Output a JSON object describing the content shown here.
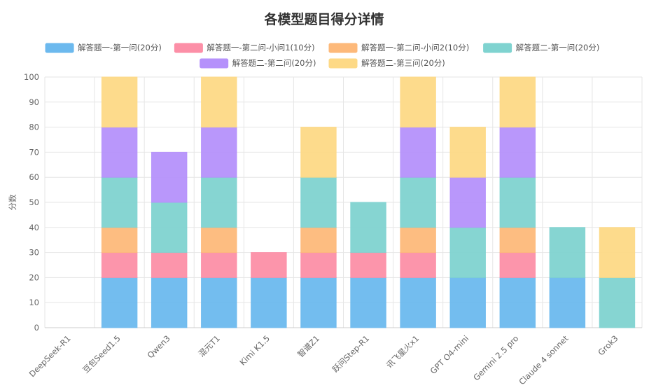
{
  "chart_data": {
    "type": "bar",
    "stacked": true,
    "title": "各模型题目得分详情",
    "ylabel": "分数",
    "xlabel": "",
    "ylim": [
      0,
      100
    ],
    "yticks": [
      0,
      10,
      20,
      30,
      40,
      50,
      60,
      70,
      80,
      90,
      100
    ],
    "grid": true,
    "legend_position": "top",
    "categories": [
      "DeepSeek-R1",
      "豆包Seed1.5",
      "Qwen3",
      "混元T1",
      "Kimi K1.5",
      "智谱Z1",
      "跃问Step-R1",
      "讯飞星火x1",
      "GPT O4-mini",
      "Gemini 2.5 pro",
      "Claude 4 sonnet",
      "Grok3"
    ],
    "series": [
      {
        "name": "解答题一-第一问(20分)",
        "color": "#6cb9ee",
        "values": [
          0,
          20,
          20,
          20,
          20,
          20,
          20,
          20,
          20,
          20,
          20,
          0
        ]
      },
      {
        "name": "解答题一-第二问-小问1(10分)",
        "color": "#fc8fa7",
        "values": [
          0,
          10,
          10,
          10,
          10,
          10,
          10,
          10,
          0,
          10,
          0,
          0
        ]
      },
      {
        "name": "解答题一-第二问-小问2(10分)",
        "color": "#fdb97a",
        "values": [
          0,
          10,
          0,
          10,
          0,
          10,
          0,
          10,
          0,
          10,
          0,
          0
        ]
      },
      {
        "name": "解答题二-第一问(20分)",
        "color": "#7fd3d0",
        "values": [
          0,
          20,
          20,
          20,
          0,
          20,
          20,
          20,
          20,
          20,
          20,
          20
        ]
      },
      {
        "name": "解答题二-第二问(20分)",
        "color": "#b591fb",
        "values": [
          0,
          20,
          20,
          20,
          0,
          0,
          0,
          20,
          20,
          20,
          0,
          0
        ]
      },
      {
        "name": "解答题二-第三问(20分)",
        "color": "#fdd986",
        "values": [
          0,
          20,
          0,
          20,
          0,
          20,
          0,
          20,
          20,
          20,
          0,
          20
        ]
      }
    ]
  }
}
